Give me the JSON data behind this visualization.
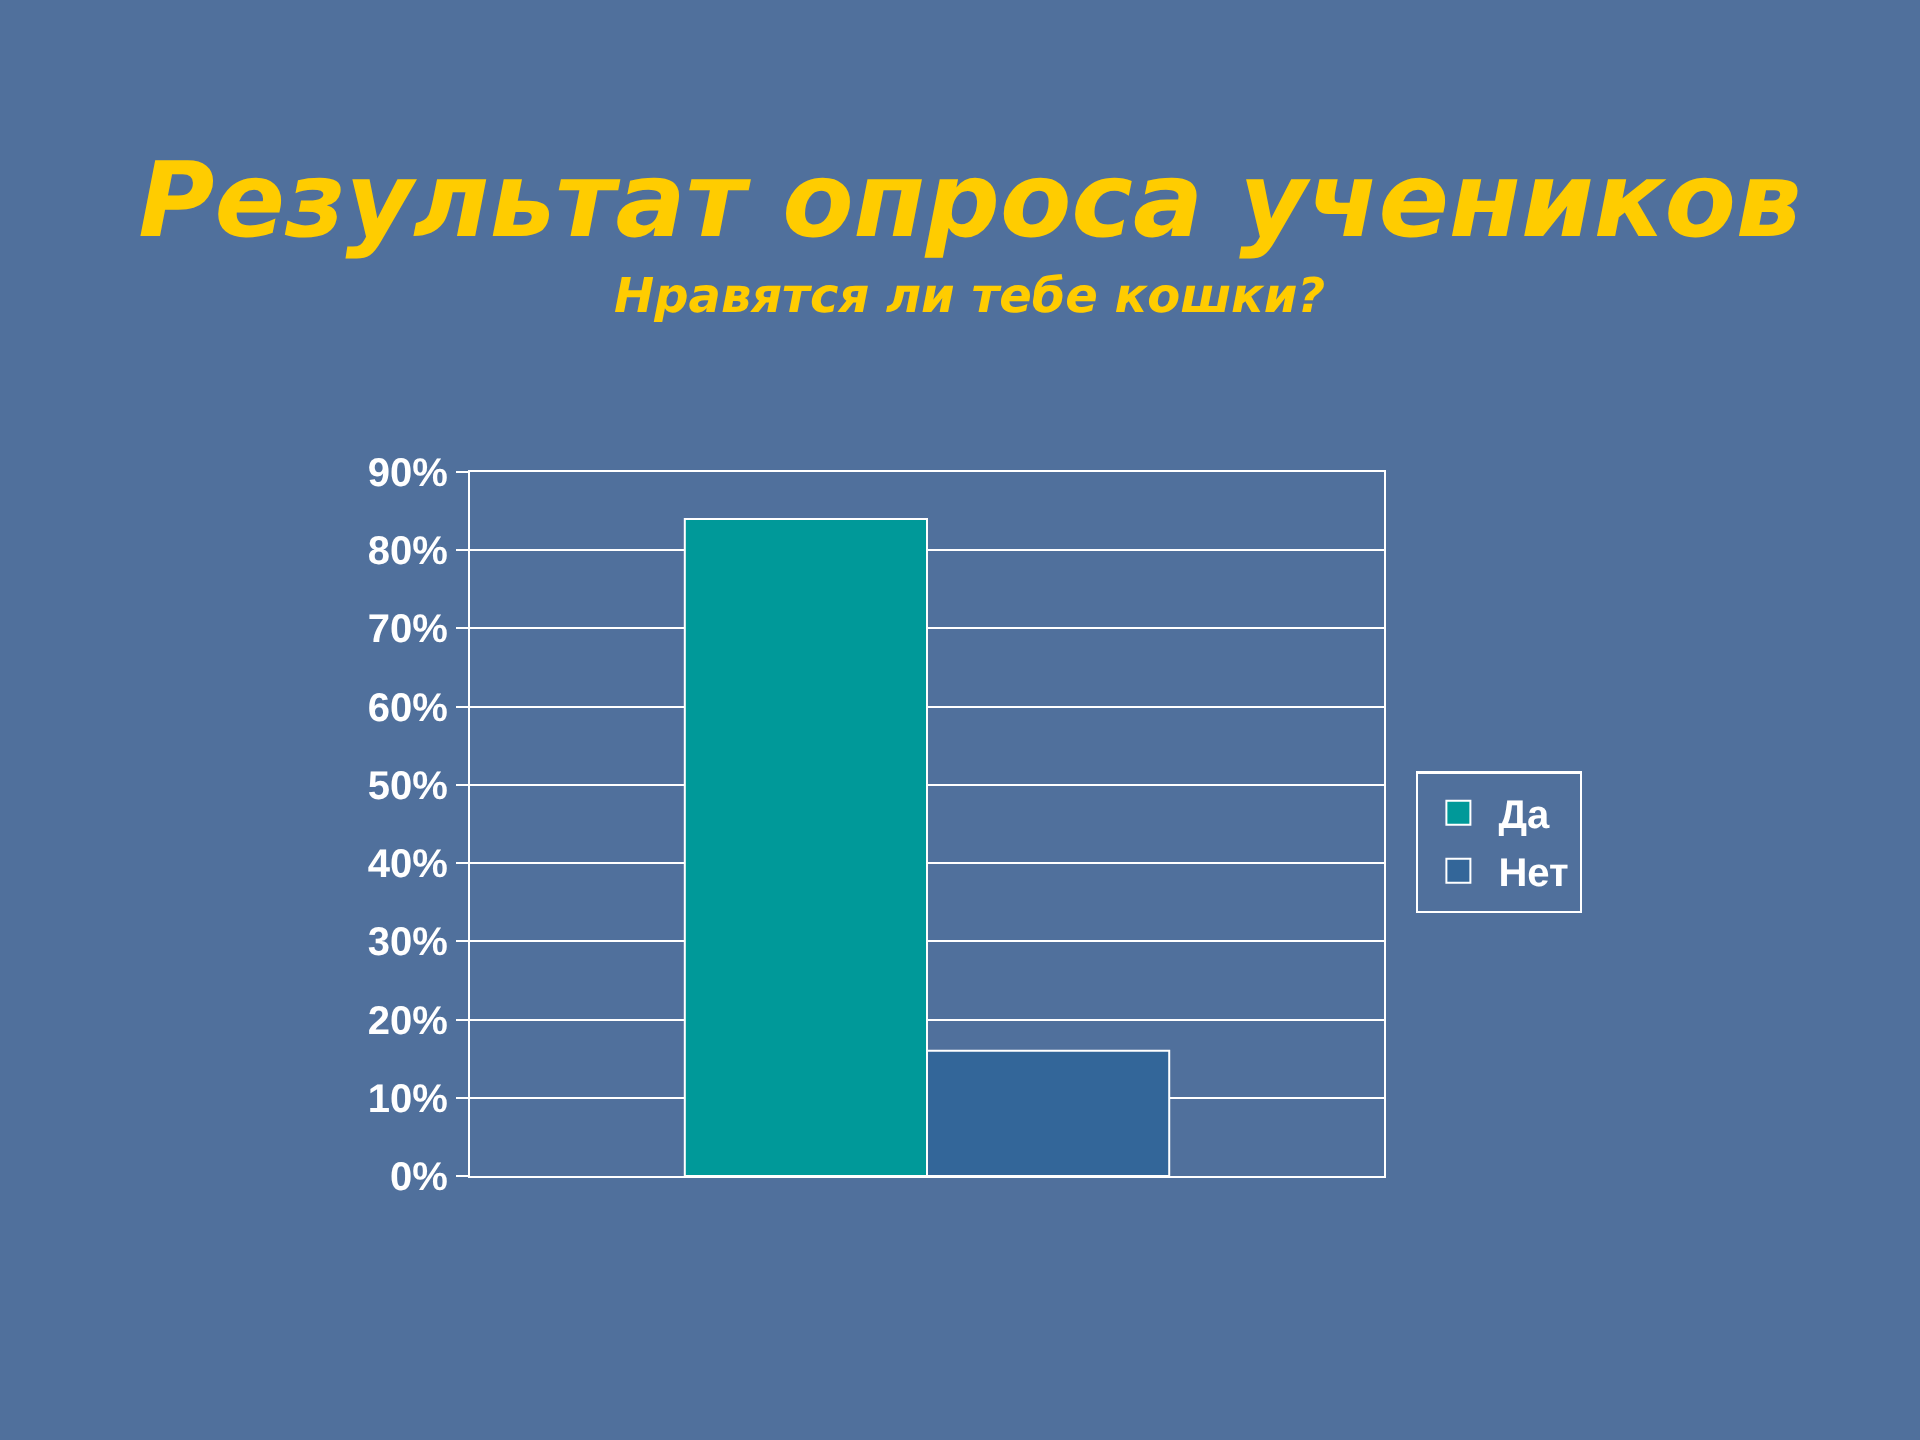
{
  "chart_data": {
    "type": "bar",
    "title": "Результат опроса учеников",
    "subtitle": "Нравятся ли тебе кошки?",
    "categories": [
      null
    ],
    "series": [
      {
        "name": "Да",
        "color": "#009999",
        "values": [
          84
        ]
      },
      {
        "name": "Нет",
        "color": "#336699",
        "values": [
          16
        ]
      }
    ],
    "ylim": [
      0,
      90
    ],
    "yticks": [
      {
        "value": 0,
        "label": "0%"
      },
      {
        "value": 10,
        "label": "10%"
      },
      {
        "value": 20,
        "label": "20%"
      },
      {
        "value": 30,
        "label": "30%"
      },
      {
        "value": 40,
        "label": "40%"
      },
      {
        "value": 50,
        "label": "50%"
      },
      {
        "value": 60,
        "label": "60%"
      },
      {
        "value": 70,
        "label": "70%"
      },
      {
        "value": 80,
        "label": "80%"
      },
      {
        "value": 90,
        "label": "90%"
      }
    ],
    "grid": "y",
    "legend": "right"
  }
}
